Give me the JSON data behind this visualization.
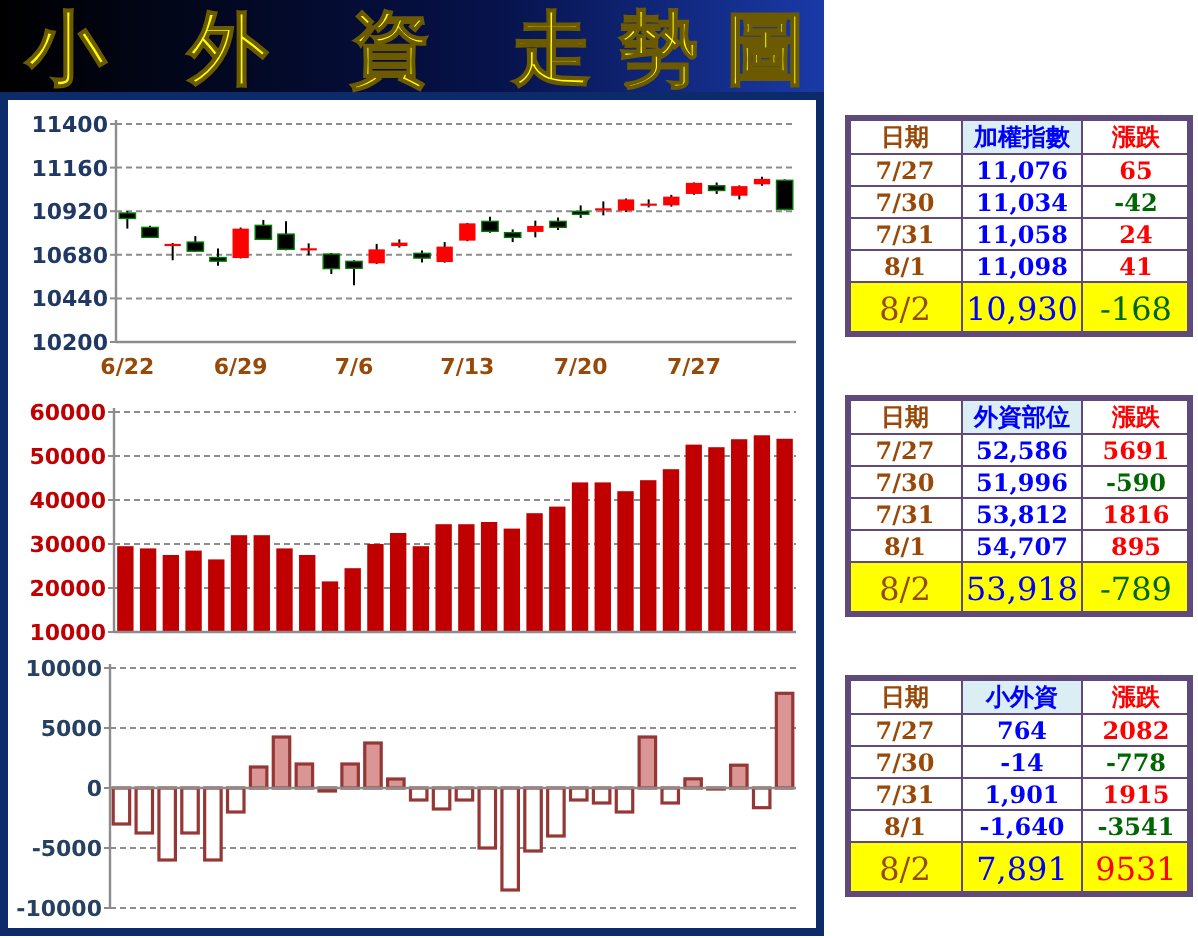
{
  "chart_data": [
    {
      "type": "candlestick",
      "title": "小 外 資 走勢圖",
      "categories": [
        "6/22",
        null,
        null,
        null,
        null,
        "6/29",
        null,
        null,
        null,
        null,
        "7/6",
        null,
        null,
        null,
        null,
        "7/13",
        null,
        null,
        null,
        null,
        "7/20",
        null,
        null,
        null,
        null,
        "7/27",
        null,
        null,
        null,
        null
      ],
      "ohlc": [
        [
          10910,
          10920,
          10824,
          10880
        ],
        [
          10831,
          10840,
          10776,
          10776
        ],
        [
          10728,
          10745,
          10650,
          10740
        ],
        [
          10750,
          10783,
          10695,
          10700
        ],
        [
          10665,
          10714,
          10620,
          10645
        ],
        [
          10662,
          10830,
          10660,
          10824
        ],
        [
          10842,
          10872,
          10765,
          10765
        ],
        [
          10794,
          10864,
          10705,
          10710
        ],
        [
          10704,
          10743,
          10677,
          10716
        ],
        [
          10684,
          10690,
          10574,
          10604
        ],
        [
          10644,
          10650,
          10512,
          10606
        ],
        [
          10633,
          10740,
          10630,
          10710
        ],
        [
          10728,
          10765,
          10720,
          10747
        ],
        [
          10688,
          10703,
          10637,
          10662
        ],
        [
          10640,
          10750,
          10637,
          10725
        ],
        [
          10758,
          10855,
          10755,
          10853
        ],
        [
          10864,
          10890,
          10802,
          10809
        ],
        [
          10802,
          10820,
          10750,
          10776
        ],
        [
          10806,
          10868,
          10776,
          10839
        ],
        [
          10864,
          10886,
          10816,
          10831
        ],
        [
          10919,
          10952,
          10883,
          10903
        ],
        [
          10924,
          10974,
          10897,
          10936
        ],
        [
          10923,
          10990,
          10915,
          10985
        ],
        [
          10950,
          10985,
          10941,
          10962
        ],
        [
          10952,
          11010,
          10945,
          11000
        ],
        [
          11015,
          11078,
          11010,
          11076
        ],
        [
          11060,
          11078,
          11015,
          11034
        ],
        [
          11005,
          11062,
          10985,
          11058
        ],
        [
          11068,
          11110,
          11060,
          11098
        ],
        [
          11090,
          11095,
          10925,
          10930
        ]
      ],
      "ylim": [
        10200,
        11400
      ],
      "yticks": [
        10200,
        10440,
        10680,
        10920,
        11160,
        11400
      ],
      "grid": "y"
    },
    {
      "type": "bar",
      "categories": [
        null,
        null,
        null,
        null,
        null,
        null,
        null,
        null,
        null,
        null,
        null,
        null,
        null,
        null,
        null,
        null,
        null,
        null,
        null,
        null,
        null,
        null,
        null,
        null,
        null,
        null,
        null,
        null,
        null,
        null
      ],
      "values": [
        29500,
        29000,
        27500,
        28500,
        26500,
        32000,
        32000,
        29000,
        27500,
        21500,
        24500,
        30000,
        32500,
        29500,
        34500,
        34500,
        35000,
        33500,
        37000,
        38500,
        44000,
        44000,
        42000,
        44500,
        47000,
        52586,
        51996,
        53812,
        54707,
        53918
      ],
      "color": "#c00000",
      "ylim": [
        10000,
        60000
      ],
      "yticks": [
        10000,
        20000,
        30000,
        40000,
        50000,
        60000
      ],
      "grid": "y",
      "tick_labels": "y"
    },
    {
      "type": "bar",
      "categories": [
        null,
        null,
        null,
        null,
        null,
        null,
        null,
        null,
        null,
        null,
        null,
        null,
        null,
        null,
        null,
        null,
        null,
        null,
        null,
        null,
        null,
        null,
        null,
        null,
        null,
        null,
        null,
        null,
        null,
        null
      ],
      "values": [
        -3000,
        -3750,
        -6000,
        -3750,
        -6000,
        -2000,
        1750,
        4250,
        2000,
        -250,
        2000,
        3750,
        750,
        -1000,
        -1750,
        -1000,
        -5000,
        -8500,
        -5250,
        -4000,
        -1000,
        -1250,
        -2000,
        4250,
        -1250,
        764,
        -14,
        1901,
        -1640,
        7891
      ],
      "colors": [
        "#ffffff",
        "#ffffff",
        "#ffffff",
        "#ffffff",
        "#ffffff",
        "#ffffff",
        "#d99694",
        "#d99694",
        "#d99694",
        "#ffffff",
        "#d99694",
        "#d99694",
        "#d99694",
        "#ffffff",
        "#ffffff",
        "#ffffff",
        "#ffffff",
        "#ffffff",
        "#ffffff",
        "#ffffff",
        "#ffffff",
        "#ffffff",
        "#ffffff",
        "#d99694",
        "#ffffff",
        "#d99694",
        "#ffffff",
        "#d99694",
        "#ffffff",
        "#d99694"
      ],
      "ylim": [
        -10000,
        10000
      ],
      "yticks": [
        -10000,
        -5000,
        0,
        5000,
        10000
      ],
      "grid": "y",
      "tick_labels": "y"
    },
    {
      "type": "other",
      "annotations": [
        "日期",
        "加權指數",
        "漲跌",
        "7/27",
        "11,076",
        "65",
        "7/30",
        "11,034",
        "-42",
        "7/31",
        "11,058",
        "24",
        "8/1",
        "11,098",
        "41",
        "8/2",
        "10,930",
        "-168"
      ]
    },
    {
      "type": "other",
      "annotations": [
        "日期",
        "外資部位",
        "漲跌",
        "7/27",
        "52,586",
        "5691",
        "7/30",
        "51,996",
        "-590",
        "7/31",
        "53,812",
        "1816",
        "8/1",
        "54,707",
        "895",
        "8/2",
        "53,918",
        "-789"
      ]
    },
    {
      "type": "other",
      "annotations": [
        "日期",
        "小外資",
        "漲跌",
        "7/27",
        "764",
        "2082",
        "7/30",
        "-14",
        "-778",
        "7/31",
        "1,901",
        "1915",
        "8/1",
        "-1,640",
        "-3541",
        "8/2",
        "7,891",
        "9531"
      ]
    }
  ]
}
